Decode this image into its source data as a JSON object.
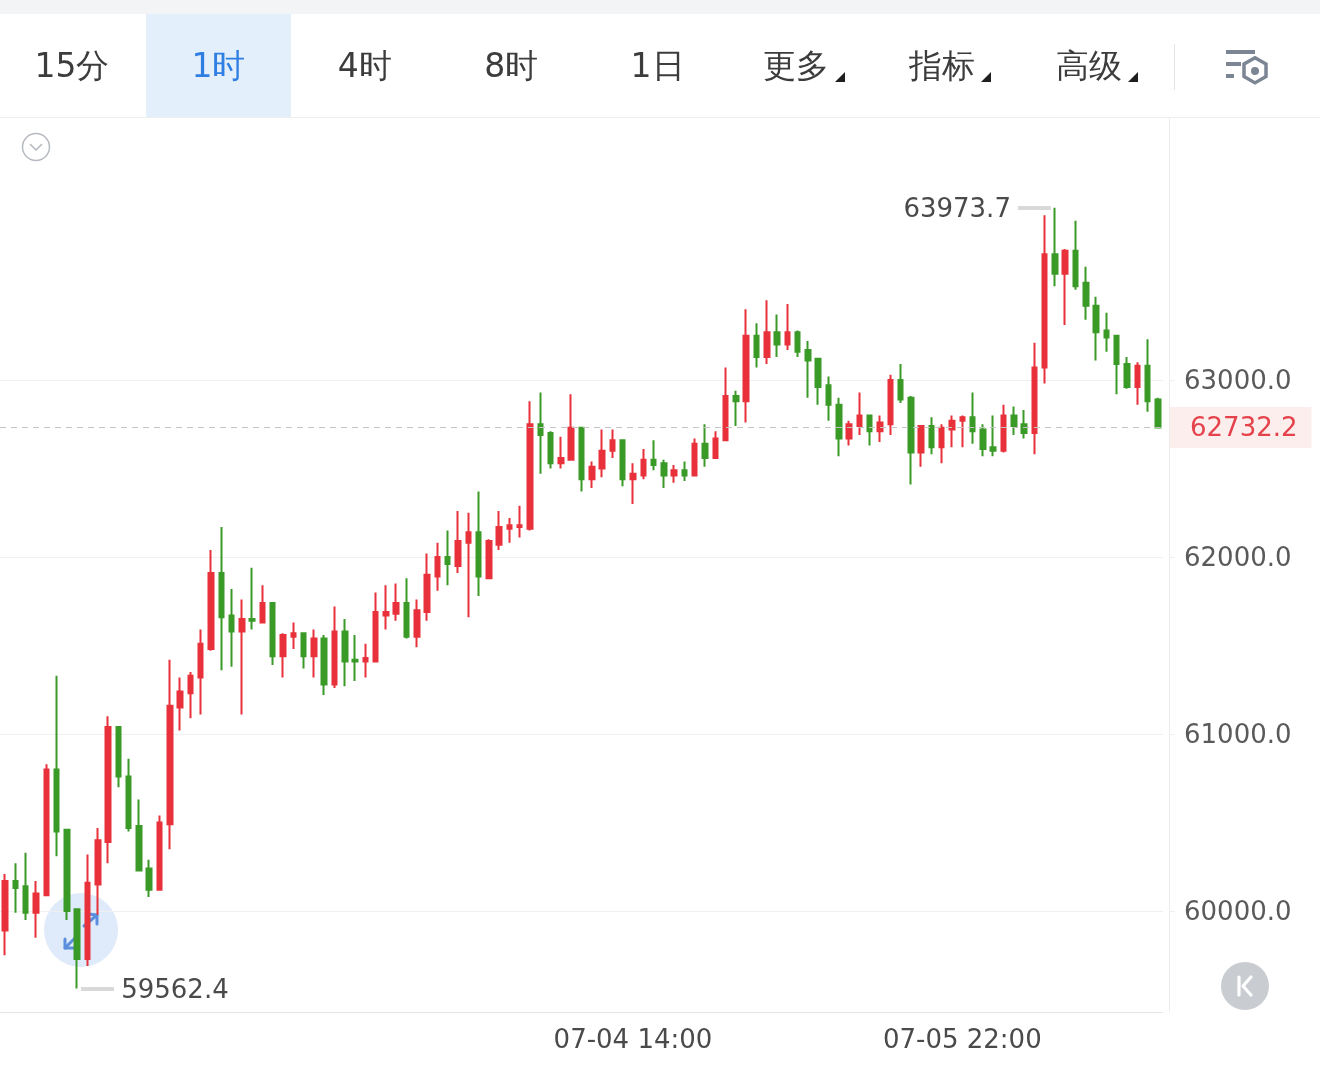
{
  "chart_data": {
    "type": "candlestick",
    "annotations": [
      "15分",
      "1时",
      "4时",
      "8时",
      "1日",
      "更多",
      "指标",
      "高级",
      "63973.7",
      "59562.4"
    ],
    "categories": [
      null,
      null,
      null,
      null,
      null,
      null,
      null,
      null,
      null,
      null,
      null,
      null,
      null,
      null,
      null,
      null,
      null,
      null,
      null,
      null,
      null,
      null,
      null,
      null,
      null,
      null,
      null,
      null,
      null,
      null,
      null,
      null,
      null,
      null,
      null,
      null,
      null,
      null,
      null,
      null,
      null,
      null,
      null,
      null,
      null,
      null,
      null,
      null,
      null,
      null,
      null,
      null,
      null,
      null,
      null,
      null,
      null,
      null,
      null,
      null,
      null,
      "07-04 14:00",
      null,
      null,
      null,
      null,
      null,
      null,
      null,
      null,
      null,
      null,
      null,
      null,
      null,
      null,
      null,
      null,
      null,
      null,
      null,
      null,
      null,
      null,
      null,
      null,
      null,
      null,
      null,
      null,
      null,
      null,
      null,
      "07-05 22:00",
      null,
      null,
      null,
      null,
      null,
      null,
      null,
      null,
      null,
      null,
      null,
      null,
      null,
      null,
      null,
      null,
      null,
      null,
      null
    ],
    "ohlc": [
      [
        59890,
        60210,
        59750,
        60170
      ],
      [
        60170,
        60270,
        59990,
        60130
      ],
      [
        60140,
        60330,
        59950,
        59990
      ],
      [
        59990,
        60170,
        59850,
        60100
      ],
      [
        60090,
        60830,
        60090,
        60800
      ],
      [
        60800,
        61330,
        60310,
        60450
      ],
      [
        60460,
        60460,
        59950,
        60000
      ],
      [
        60010,
        60010,
        59562.4,
        59730
      ],
      [
        59730,
        60320,
        59690,
        60160
      ],
      [
        60150,
        60470,
        59980,
        60400
      ],
      [
        60390,
        61100,
        60270,
        61040
      ],
      [
        61040,
        61040,
        60700,
        60760
      ],
      [
        60760,
        60860,
        60450,
        60470
      ],
      [
        60480,
        60630,
        60230,
        60230
      ],
      [
        60240,
        60290,
        60080,
        60120
      ],
      [
        60120,
        60540,
        60120,
        60500
      ],
      [
        60490,
        61420,
        60350,
        61160
      ],
      [
        61150,
        61320,
        61020,
        61240
      ],
      [
        61230,
        61350,
        61090,
        61330
      ],
      [
        61320,
        61590,
        61110,
        61510
      ],
      [
        61480,
        62040,
        61470,
        61910
      ],
      [
        61910,
        62170,
        61360,
        61660
      ],
      [
        61670,
        61820,
        61380,
        61580
      ],
      [
        61580,
        61760,
        61110,
        61650
      ],
      [
        61650,
        61940,
        61590,
        61640
      ],
      [
        61630,
        61840,
        61630,
        61740
      ],
      [
        61740,
        61740,
        61390,
        61440
      ],
      [
        61440,
        61570,
        61320,
        61560
      ],
      [
        61550,
        61630,
        61480,
        61570
      ],
      [
        61570,
        61570,
        61370,
        61440
      ],
      [
        61440,
        61590,
        61320,
        61540
      ],
      [
        61540,
        61560,
        61220,
        61280
      ],
      [
        61280,
        61720,
        61260,
        61580
      ],
      [
        61580,
        61650,
        61270,
        61410
      ],
      [
        61420,
        61560,
        61300,
        61410
      ],
      [
        61410,
        61510,
        61320,
        61430
      ],
      [
        61410,
        61800,
        61410,
        61690
      ],
      [
        61670,
        61840,
        61590,
        61690
      ],
      [
        61680,
        61850,
        61640,
        61740
      ],
      [
        61740,
        61880,
        61540,
        61550
      ],
      [
        61550,
        61760,
        61490,
        61700
      ],
      [
        61690,
        62020,
        61640,
        61900
      ],
      [
        61890,
        62080,
        61810,
        62000
      ],
      [
        62000,
        62150,
        61840,
        61960
      ],
      [
        61950,
        62260,
        61910,
        62090
      ],
      [
        62080,
        62250,
        61660,
        62140
      ],
      [
        62140,
        62370,
        61780,
        61890
      ],
      [
        61880,
        62100,
        61880,
        62090
      ],
      [
        62070,
        62260,
        62040,
        62170
      ],
      [
        62160,
        62220,
        62080,
        62180
      ],
      [
        62170,
        62290,
        62110,
        62180
      ],
      [
        62160,
        62880,
        62150,
        62750
      ],
      [
        62750,
        62930,
        62470,
        62690
      ],
      [
        62700,
        62710,
        62500,
        62530
      ],
      [
        62530,
        62680,
        62500,
        62560
      ],
      [
        62550,
        62920,
        62550,
        62730
      ],
      [
        62730,
        62730,
        62370,
        62440
      ],
      [
        62440,
        62540,
        62390,
        62510
      ],
      [
        62500,
        62720,
        62450,
        62600
      ],
      [
        62600,
        62720,
        62560,
        62660
      ],
      [
        62660,
        62660,
        62400,
        62440
      ],
      [
        62440,
        62530,
        62300,
        62470
      ],
      [
        62460,
        62610,
        62440,
        62550
      ],
      [
        62550,
        62660,
        62490,
        62520
      ],
      [
        62530,
        62550,
        62390,
        62460
      ],
      [
        62460,
        62520,
        62420,
        62490
      ],
      [
        62490,
        62540,
        62430,
        62460
      ],
      [
        62460,
        62670,
        62460,
        62640
      ],
      [
        62640,
        62750,
        62510,
        62560
      ],
      [
        62560,
        62710,
        62560,
        62670
      ],
      [
        62660,
        63070,
        62660,
        62910
      ],
      [
        62910,
        62940,
        62740,
        62880
      ],
      [
        62880,
        63400,
        62760,
        63250
      ],
      [
        63250,
        63320,
        63070,
        63130
      ],
      [
        63130,
        63450,
        63090,
        63270
      ],
      [
        63270,
        63370,
        63130,
        63200
      ],
      [
        63200,
        63430,
        63170,
        63270
      ],
      [
        63270,
        63280,
        63130,
        63160
      ],
      [
        63170,
        63220,
        62900,
        63110
      ],
      [
        63120,
        63120,
        62860,
        62960
      ],
      [
        62970,
        63020,
        62770,
        62860
      ],
      [
        62860,
        62900,
        62570,
        62670
      ],
      [
        62670,
        62770,
        62630,
        62750
      ],
      [
        62740,
        62930,
        62690,
        62800
      ],
      [
        62800,
        62800,
        62630,
        62710
      ],
      [
        62710,
        62800,
        62650,
        62760
      ],
      [
        62750,
        63030,
        62690,
        63000
      ],
      [
        63000,
        63090,
        62870,
        62890
      ],
      [
        62900,
        62910,
        62410,
        62590
      ],
      [
        62590,
        62740,
        62510,
        62740
      ],
      [
        62740,
        62790,
        62580,
        62620
      ],
      [
        62620,
        62750,
        62530,
        62730
      ],
      [
        62720,
        62800,
        62620,
        62770
      ],
      [
        62770,
        62800,
        62620,
        62790
      ],
      [
        62790,
        62930,
        62640,
        62710
      ],
      [
        62720,
        62750,
        62570,
        62610
      ],
      [
        62620,
        62800,
        62570,
        62600
      ],
      [
        62600,
        62860,
        62590,
        62800
      ],
      [
        62800,
        62850,
        62690,
        62740
      ],
      [
        62750,
        62830,
        62670,
        62700
      ],
      [
        62700,
        63210,
        62580,
        63070
      ],
      [
        63070,
        63930,
        62980,
        63710
      ],
      [
        63710,
        63973.7,
        63530,
        63600
      ],
      [
        63600,
        63740,
        63310,
        63730
      ],
      [
        63730,
        63900,
        63510,
        63530
      ],
      [
        63550,
        63640,
        63340,
        63420
      ],
      [
        63420,
        63470,
        63110,
        63270
      ],
      [
        63280,
        63380,
        63160,
        63240
      ],
      [
        63250,
        63250,
        62920,
        63090
      ],
      [
        63090,
        63130,
        62950,
        62960
      ],
      [
        62960,
        63100,
        62860,
        63080
      ],
      [
        63080,
        63230,
        62820,
        62880
      ],
      [
        62890,
        62900,
        62732.2,
        62732.2
      ]
    ],
    "colors": [
      "#e8313a",
      "#3a9a27",
      "#3a9a27",
      "#e8313a",
      "#e8313a",
      "#3a9a27",
      "#3a9a27",
      "#3a9a27",
      "#e8313a",
      "#e8313a",
      "#e8313a",
      "#3a9a27",
      "#3a9a27",
      "#3a9a27",
      "#3a9a27",
      "#e8313a",
      "#e8313a",
      "#e8313a",
      "#e8313a",
      "#e8313a",
      "#e8313a",
      "#3a9a27",
      "#3a9a27",
      "#e8313a",
      "#3a9a27",
      "#e8313a",
      "#3a9a27",
      "#e8313a",
      "#e8313a",
      "#3a9a27",
      "#e8313a",
      "#3a9a27",
      "#e8313a",
      "#3a9a27",
      "#3a9a27",
      "#e8313a",
      "#e8313a",
      "#e8313a",
      "#e8313a",
      "#3a9a27",
      "#e8313a",
      "#e8313a",
      "#e8313a",
      "#3a9a27",
      "#e8313a",
      "#e8313a",
      "#3a9a27",
      "#e8313a",
      "#e8313a",
      "#e8313a",
      "#e8313a",
      "#e8313a",
      "#3a9a27",
      "#3a9a27",
      "#e8313a",
      "#e8313a",
      "#3a9a27",
      "#e8313a",
      "#e8313a",
      "#e8313a",
      "#3a9a27",
      "#e8313a",
      "#e8313a",
      "#3a9a27",
      "#3a9a27",
      "#e8313a",
      "#3a9a27",
      "#e8313a",
      "#3a9a27",
      "#e8313a",
      "#e8313a",
      "#3a9a27",
      "#e8313a",
      "#3a9a27",
      "#e8313a",
      "#3a9a27",
      "#e8313a",
      "#3a9a27",
      "#3a9a27",
      "#3a9a27",
      "#3a9a27",
      "#3a9a27",
      "#e8313a",
      "#e8313a",
      "#3a9a27",
      "#e8313a",
      "#e8313a",
      "#3a9a27",
      "#3a9a27",
      "#e8313a",
      "#3a9a27",
      "#e8313a",
      "#e8313a",
      "#e8313a",
      "#3a9a27",
      "#3a9a27",
      "#3a9a27",
      "#e8313a",
      "#3a9a27",
      "#3a9a27",
      "#e8313a",
      "#e8313a",
      "#3a9a27",
      "#e8313a",
      "#3a9a27",
      "#3a9a27",
      "#3a9a27",
      "#3a9a27",
      "#3a9a27",
      "#3a9a27",
      "#e8313a",
      "#3a9a27",
      "#3a9a27"
    ],
    "ylim": [
      59430,
      64480
    ],
    "yticks": [
      {
        "value": 60000,
        "label": "60000.0"
      },
      {
        "value": 61000,
        "label": "61000.0"
      },
      {
        "value": 62000,
        "label": "62000.0"
      },
      {
        "value": 63000,
        "label": "63000.0"
      }
    ],
    "grid": "y",
    "ref_lines": [
      {
        "axis": "y",
        "value": 62732.2,
        "label": "62732.2",
        "color": "#c4c4c4",
        "line_style": "dashed"
      }
    ]
  }
}
